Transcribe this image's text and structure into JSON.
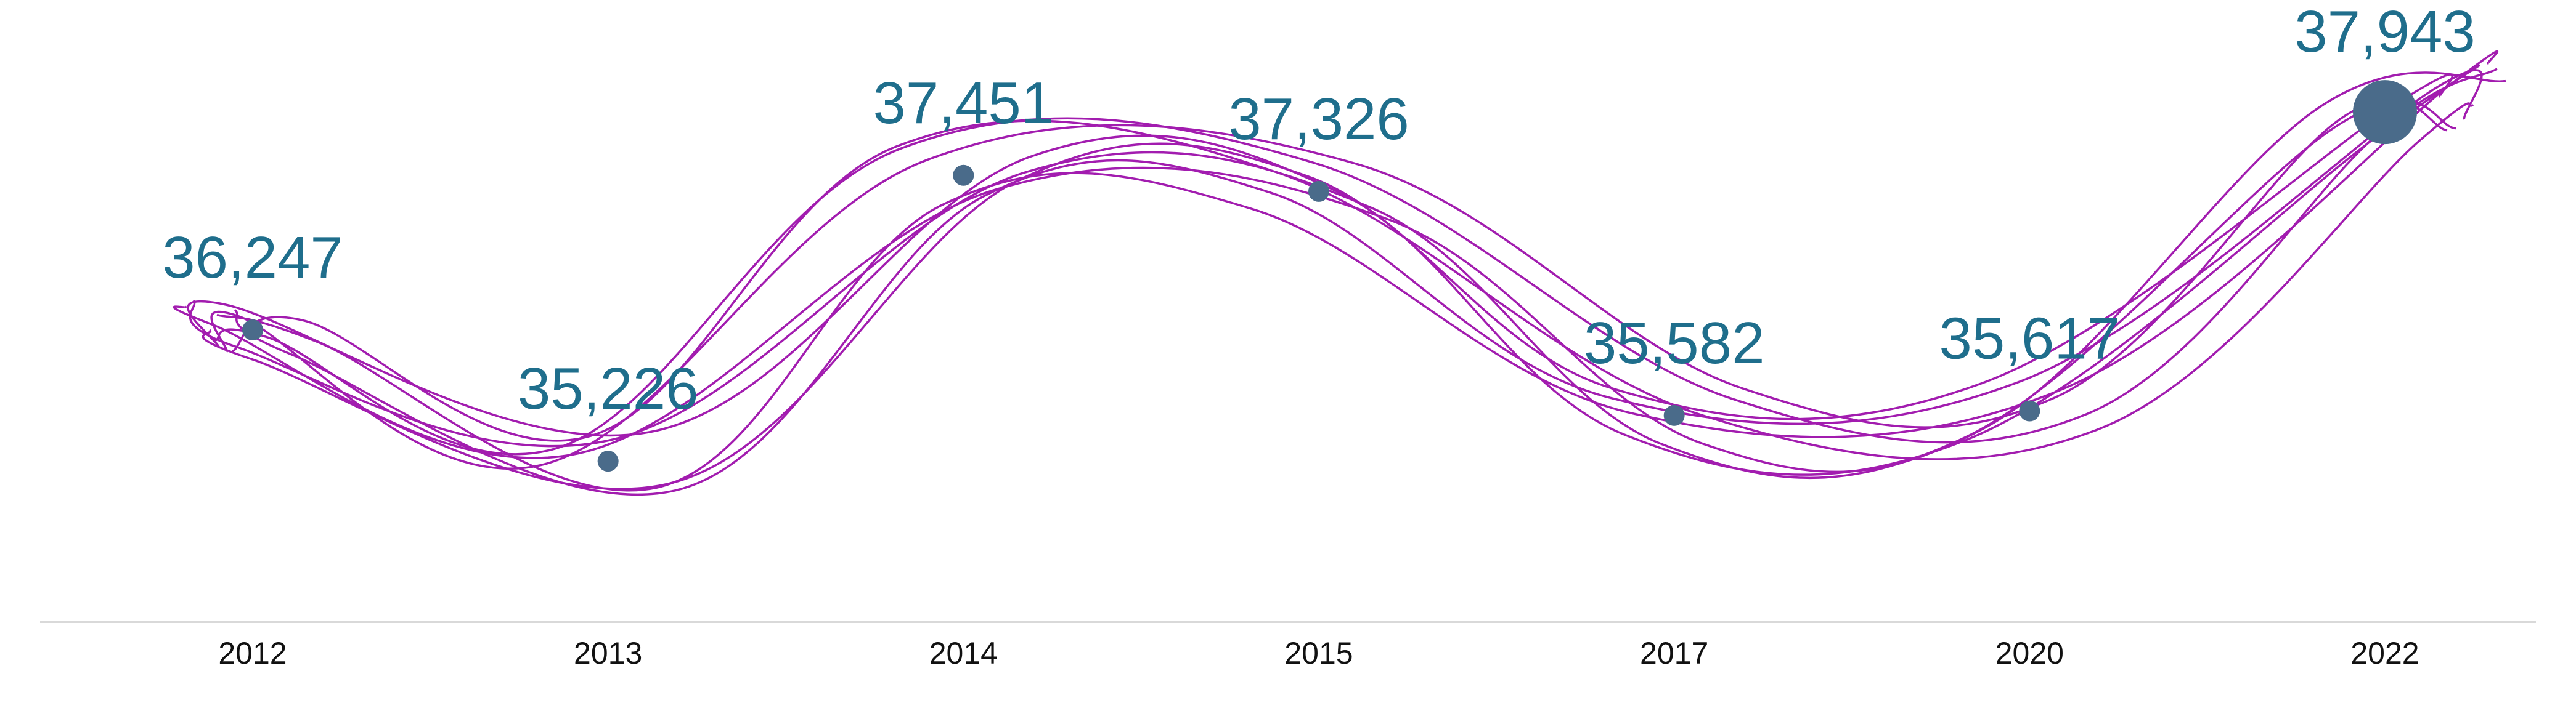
{
  "chart_data": {
    "type": "line",
    "categories": [
      "2012",
      "2013",
      "2014",
      "2015",
      "2017",
      "2020",
      "2022"
    ],
    "values": [
      36247,
      35226,
      37451,
      37326,
      35582,
      35617,
      37943
    ],
    "data_labels": [
      "36,247",
      "35,226",
      "37,451",
      "37,326",
      "35,582",
      "35,617",
      "37,943"
    ],
    "highlight_index": 6,
    "title": "",
    "xlabel": "",
    "ylabel": "",
    "ylim": [
      34000,
      38600
    ],
    "grid": false,
    "colors": {
      "curves": "#A21CAF",
      "points": "#4A6B8A",
      "labels": "#1F6E8C",
      "axis": "#D9D9D9"
    }
  }
}
